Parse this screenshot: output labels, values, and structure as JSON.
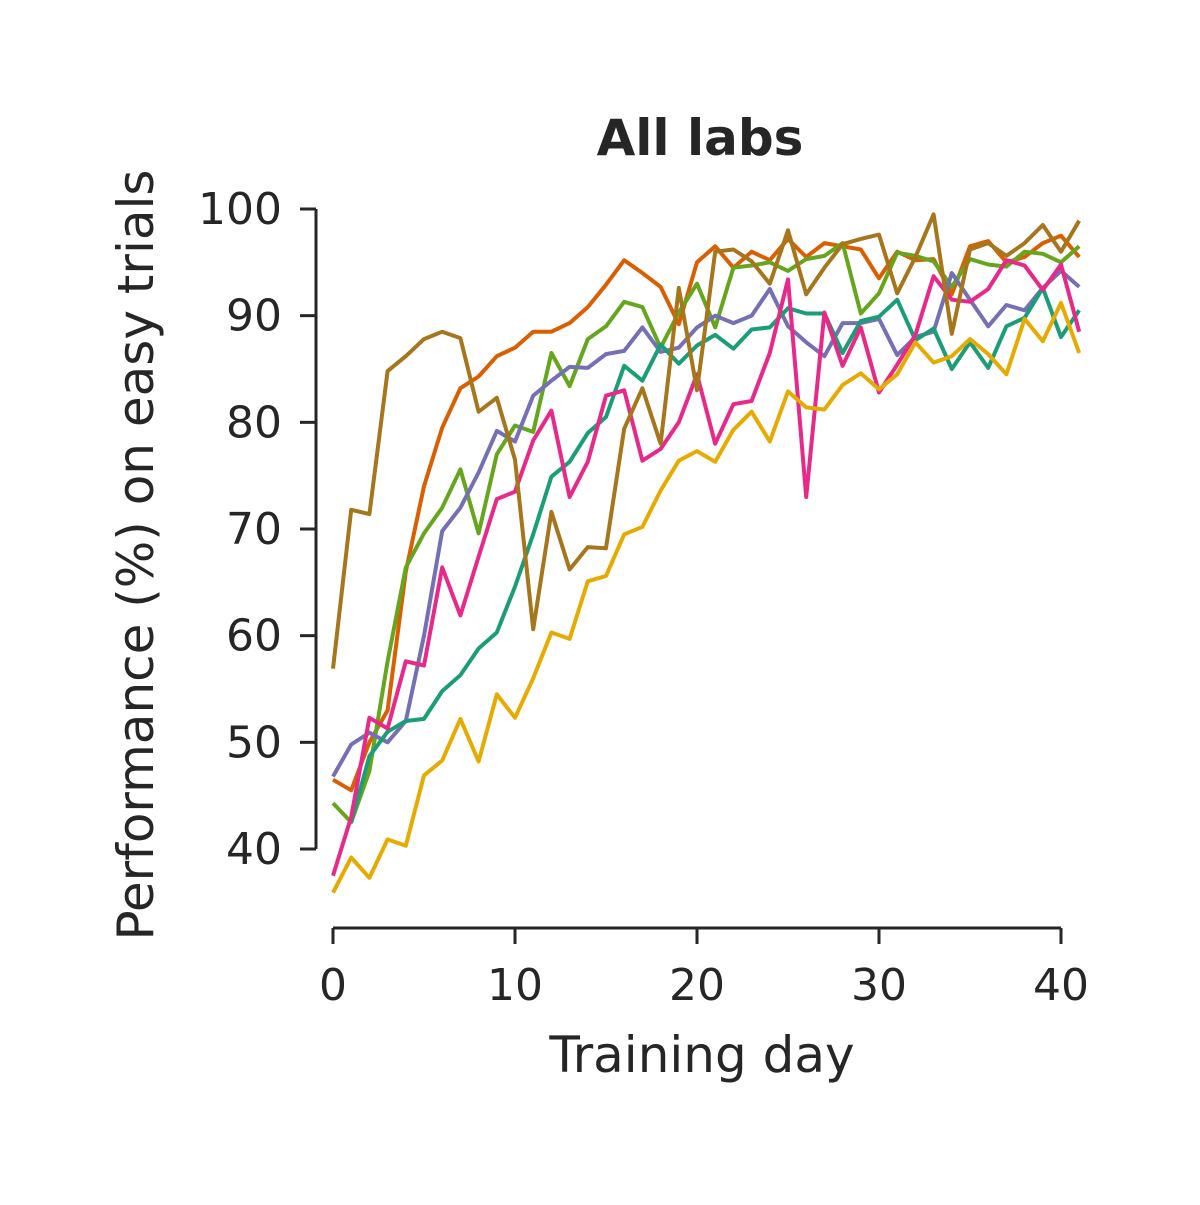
{
  "chart_data": {
    "type": "line",
    "title": "All labs",
    "xlabel": "Training day",
    "ylabel": "Performance (%) on easy trials",
    "xlim": [
      0,
      41
    ],
    "ylim": [
      40,
      100
    ],
    "xticks": [
      0,
      10,
      20,
      30,
      40
    ],
    "yticks": [
      40,
      50,
      60,
      70,
      80,
      90,
      100
    ],
    "grid": false,
    "legend": "none",
    "x": [
      0,
      1,
      2,
      3,
      4,
      5,
      6,
      7,
      8,
      9,
      10,
      11,
      12,
      13,
      14,
      15,
      16,
      17,
      18,
      19,
      20,
      21,
      22,
      23,
      24,
      25,
      26,
      27,
      28,
      29,
      30,
      31,
      32,
      33,
      34,
      35,
      36,
      37,
      38,
      39,
      40,
      41
    ],
    "series": [
      {
        "color": "#d95f02",
        "values": [
          46.5,
          45.5,
          50,
          53,
          66,
          74,
          79.5,
          83.2,
          84.3,
          86.2,
          87,
          88.5,
          88.5,
          89.3,
          90.8,
          92.9,
          95.2,
          94,
          92.7,
          89.2,
          95,
          96.5,
          94.5,
          96,
          95.2,
          97.2,
          95.5,
          96.8,
          96.5,
          96.2,
          93.5,
          96,
          95.2,
          95.3,
          92,
          96.5,
          97,
          95,
          95.5,
          96.8,
          97.5,
          95.5
        ]
      },
      {
        "color": "#66a61e",
        "values": [
          44.3,
          42.5,
          47.3,
          57.6,
          66.4,
          69.6,
          72,
          75.6,
          69.6,
          77,
          79.7,
          79.1,
          86.5,
          83.4,
          87.8,
          89,
          91.3,
          90.8,
          87,
          90.3,
          93,
          88.9,
          94.5,
          94.7,
          95,
          94.2,
          95.3,
          95.6,
          96.8,
          90.2,
          92.1,
          95.9,
          95.6,
          95.1,
          92.7,
          95.3,
          94.8,
          94.6,
          96,
          95.8,
          95,
          96.5
        ]
      },
      {
        "color": "#7570b3",
        "values": [
          46.8,
          49.8,
          50.9,
          50,
          52,
          60,
          69.8,
          72,
          75.3,
          79.2,
          78.2,
          82.5,
          83.9,
          85.2,
          85.1,
          86.4,
          86.7,
          88.9,
          86.6,
          87,
          88.9,
          90,
          89.3,
          90,
          92.5,
          89,
          87.5,
          86.2,
          89.3,
          89.3,
          89.7,
          86.3,
          88,
          88.5,
          94,
          91.5,
          89,
          91,
          90.5,
          92.6,
          94.2,
          92.7
        ]
      },
      {
        "color": "#1b9e77",
        "values": [
          null,
          42.5,
          48.7,
          51,
          52,
          52.2,
          54.8,
          56.3,
          58.8,
          60.3,
          64.6,
          69.5,
          74.9,
          76.3,
          79,
          80.5,
          85.3,
          83.9,
          87.3,
          85.5,
          87.2,
          88.2,
          86.9,
          88.7,
          88.9,
          90.7,
          90.2,
          90.2,
          86.5,
          89.5,
          89.9,
          91.5,
          87.7,
          88.8,
          85,
          87.5,
          85.1,
          89,
          89.8,
          92.6,
          88,
          90.5
        ]
      },
      {
        "color": "#e7298a",
        "values": [
          37.5,
          43,
          52.3,
          51.3,
          57.6,
          57.2,
          66.4,
          61.9,
          67.4,
          72.8,
          73.5,
          78.3,
          81.1,
          73,
          76.3,
          82.5,
          83,
          76.4,
          77.5,
          80,
          84.5,
          78,
          81.7,
          82,
          86.5,
          93.4,
          73,
          90.3,
          85.3,
          88.9,
          82.8,
          85.4,
          88.2,
          93.7,
          91.5,
          91.3,
          92.5,
          95.2,
          94.7,
          92.4,
          94.8,
          88.5
        ]
      },
      {
        "color": "#e6ab02",
        "values": [
          35.9,
          39.2,
          37.3,
          40.9,
          40.3,
          46.9,
          48.3,
          52.2,
          48.2,
          54.5,
          52.3,
          56,
          60.3,
          59.7,
          65.1,
          65.6,
          69.5,
          70.2,
          73.6,
          76.4,
          77.3,
          76.3,
          79.3,
          81,
          78.2,
          82.9,
          81.4,
          81.2,
          83.5,
          84.6,
          83.1,
          84.5,
          87.5,
          85.6,
          86.2,
          87.8,
          86.4,
          84.5,
          89.7,
          87.6,
          91.2,
          86.5
        ]
      },
      {
        "color": "#a6761d",
        "values": [
          56.9,
          71.8,
          71.4,
          84.8,
          86.2,
          87.8,
          88.5,
          87.9,
          81,
          82.3,
          76.5,
          60.6,
          71.6,
          66.2,
          68.3,
          68.2,
          79.4,
          83.2,
          78,
          92.6,
          83,
          96,
          96.2,
          95.1,
          93,
          98,
          92,
          94.5,
          96.7,
          97.2,
          97.6,
          92.1,
          95.5,
          99.5,
          88.3,
          96.2,
          96.8,
          95.6,
          96.8,
          98.5,
          96,
          98.9
        ]
      }
    ]
  }
}
